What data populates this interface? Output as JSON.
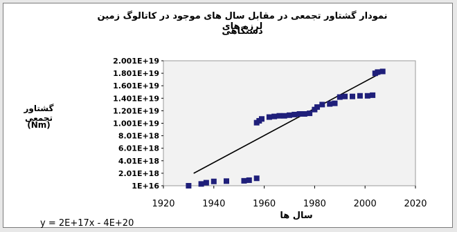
{
  "chart_data": {
    "type": "scatter",
    "title_lines": [
      "نمودار گشتاور تجمعی در مقابل سال های موجود در کاتالوگ زمین لرزه های",
      "دستگاهی"
    ],
    "ylabel": "گشتاور تجمعی",
    "yunit": "(Nm)",
    "xlabel": "سال ها",
    "equation": "y = 2E+17x - 4E+20",
    "xlim": [
      1920,
      2020
    ],
    "ylim": [
      1e+16,
      2.001e+19
    ],
    "x_ticks": [
      "1920",
      "1940",
      "1960",
      "1980",
      "2000",
      "2020"
    ],
    "y_ticks": [
      "2.001E+19",
      "1.801E+19",
      "1.601E+19",
      "1.401E+19",
      "1.201E+19",
      "1.001E+19",
      "8.01E+18",
      "6.01E+18",
      "4.01E+18",
      "2.01E+18",
      "1E+16"
    ],
    "plot_area_color": "#f2f2f2",
    "marker_color": "#1f1f7a",
    "trendline_color": "#000000",
    "series": [
      {
        "points": [
          [
            1930,
            1e+16
          ],
          [
            1935,
            3e+17
          ],
          [
            1937,
            5e+17
          ],
          [
            1940,
            7e+17
          ],
          [
            1945,
            7.5e+17
          ],
          [
            1952,
            8e+17
          ],
          [
            1954,
            9e+17
          ],
          [
            1957,
            1.2e+18
          ],
          [
            1957,
            1.01e+19
          ],
          [
            1958,
            1.04e+19
          ],
          [
            1959,
            1.07e+19
          ],
          [
            1962,
            1.1e+19
          ],
          [
            1964,
            1.11e+19
          ],
          [
            1966,
            1.12e+19
          ],
          [
            1968,
            1.12e+19
          ],
          [
            1970,
            1.13e+19
          ],
          [
            1972,
            1.14e+19
          ],
          [
            1974,
            1.15e+19
          ],
          [
            1976,
            1.15e+19
          ],
          [
            1978,
            1.16e+19
          ],
          [
            1980,
            1.22e+19
          ],
          [
            1981,
            1.26e+19
          ],
          [
            1983,
            1.3e+19
          ],
          [
            1986,
            1.31e+19
          ],
          [
            1988,
            1.32e+19
          ],
          [
            1990,
            1.42e+19
          ],
          [
            1992,
            1.43e+19
          ],
          [
            1995,
            1.43e+19
          ],
          [
            1998,
            1.44e+19
          ],
          [
            2001,
            1.44e+19
          ],
          [
            2003,
            1.45e+19
          ],
          [
            2004,
            1.8e+19
          ],
          [
            2005,
            1.82e+19
          ],
          [
            2007,
            1.83e+19
          ]
        ]
      }
    ],
    "trendline": {
      "x": [
        1932,
        2007
      ],
      "y": [
        2e+18,
        1.82e+19
      ]
    }
  }
}
